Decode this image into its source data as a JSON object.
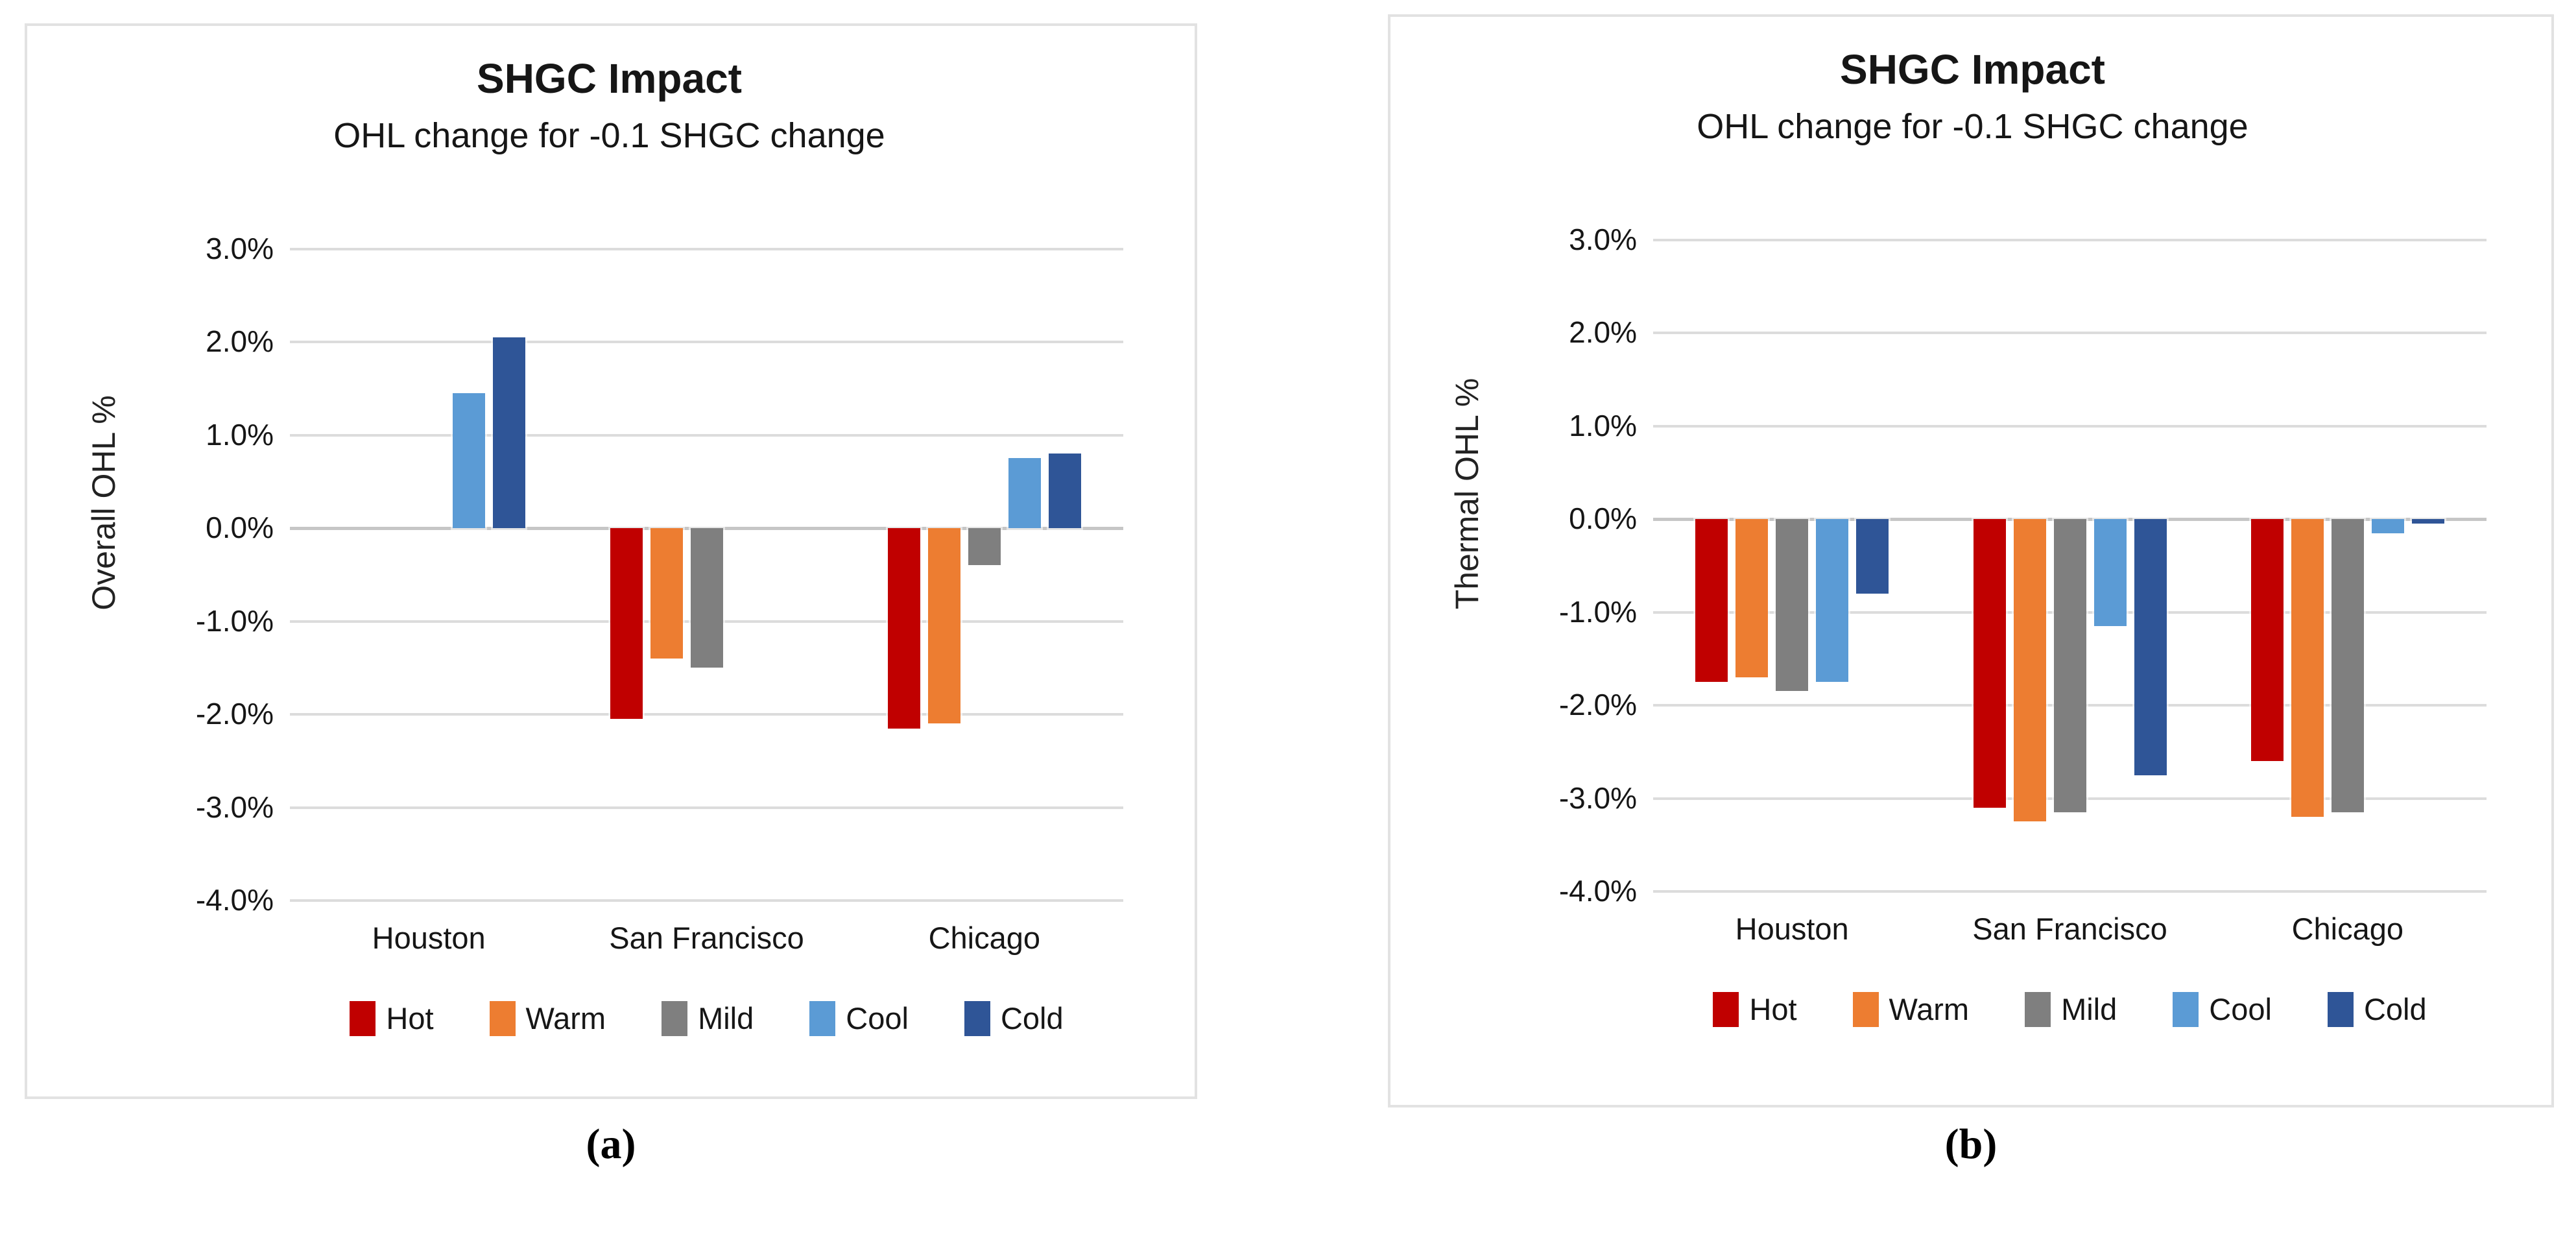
{
  "captions": {
    "a": "(a)",
    "b": "(b)"
  },
  "chart_data": [
    {
      "type": "bar",
      "title": "SHGC Impact",
      "subtitle": "OHL change for -0.1 SHGC change",
      "ylabel": "Overall OHL %",
      "xlabel": "",
      "categories": [
        "Houston",
        "San Francisco",
        "Chicago"
      ],
      "series": [
        {
          "name": "Hot",
          "color": "#C00000",
          "values": [
            0,
            -2.05,
            -2.15
          ]
        },
        {
          "name": "Warm",
          "color": "#ED7D31",
          "values": [
            0,
            -1.4,
            -2.1
          ]
        },
        {
          "name": "Mild",
          "color": "#7F7F7F",
          "values": [
            0,
            -1.5,
            -0.4
          ]
        },
        {
          "name": "Cool",
          "color": "#5B9BD5",
          "values": [
            1.45,
            0,
            0.75
          ]
        },
        {
          "name": "Cold",
          "color": "#2F5597",
          "values": [
            2.05,
            0,
            0.8
          ]
        }
      ],
      "ylim": [
        -4.0,
        3.0
      ],
      "yticks": [
        "3.0%",
        "2.0%",
        "1.0%",
        "0.0%",
        "-1.0%",
        "-2.0%",
        "-3.0%",
        "-4.0%"
      ],
      "grid": true,
      "legend_position": "bottom"
    },
    {
      "type": "bar",
      "title": "SHGC Impact",
      "subtitle": "OHL change for -0.1 SHGC change",
      "ylabel": "Thermal OHL %",
      "xlabel": "",
      "categories": [
        "Houston",
        "San Francisco",
        "Chicago"
      ],
      "series": [
        {
          "name": "Hot",
          "color": "#C00000",
          "values": [
            -1.75,
            -3.1,
            -2.6
          ]
        },
        {
          "name": "Warm",
          "color": "#ED7D31",
          "values": [
            -1.7,
            -3.25,
            -3.2
          ]
        },
        {
          "name": "Mild",
          "color": "#7F7F7F",
          "values": [
            -1.85,
            -3.15,
            -3.15
          ]
        },
        {
          "name": "Cool",
          "color": "#5B9BD5",
          "values": [
            -1.75,
            -1.15,
            -0.15
          ]
        },
        {
          "name": "Cold",
          "color": "#2F5597",
          "values": [
            -0.8,
            -2.75,
            -0.05
          ]
        }
      ],
      "ylim": [
        -4.0,
        3.0
      ],
      "yticks": [
        "3.0%",
        "2.0%",
        "1.0%",
        "0.0%",
        "-1.0%",
        "-2.0%",
        "-3.0%",
        "-4.0%"
      ],
      "grid": true,
      "legend_position": "bottom"
    }
  ]
}
